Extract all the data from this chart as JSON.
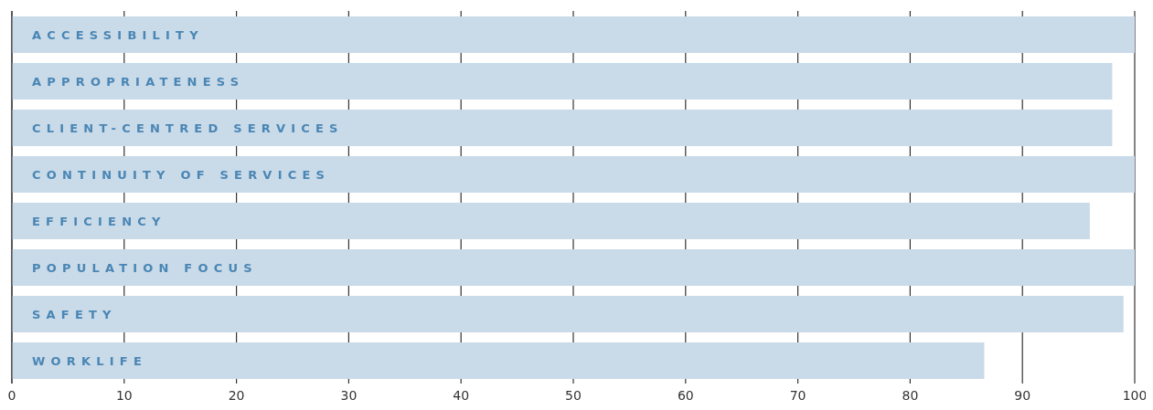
{
  "chart_data": {
    "type": "bar",
    "orientation": "horizontal",
    "categories": [
      "ACCESSIBILITY",
      "APPROPRIATENESS",
      "CLIENT-CENTRED SERVICES",
      "CONTINUITY OF SERVICES",
      "EFFICIENCY",
      "POPULATION FOCUS",
      "SAFETY",
      "WORKLIFE"
    ],
    "values": [
      100,
      98,
      98,
      100,
      96,
      100,
      99,
      86.6
    ],
    "color": "#c9dae9",
    "xlim": [
      0,
      100
    ],
    "xticks": [
      0,
      10,
      20,
      30,
      40,
      50,
      60,
      70,
      80,
      90,
      100
    ],
    "grid": "x",
    "legend": false
  }
}
